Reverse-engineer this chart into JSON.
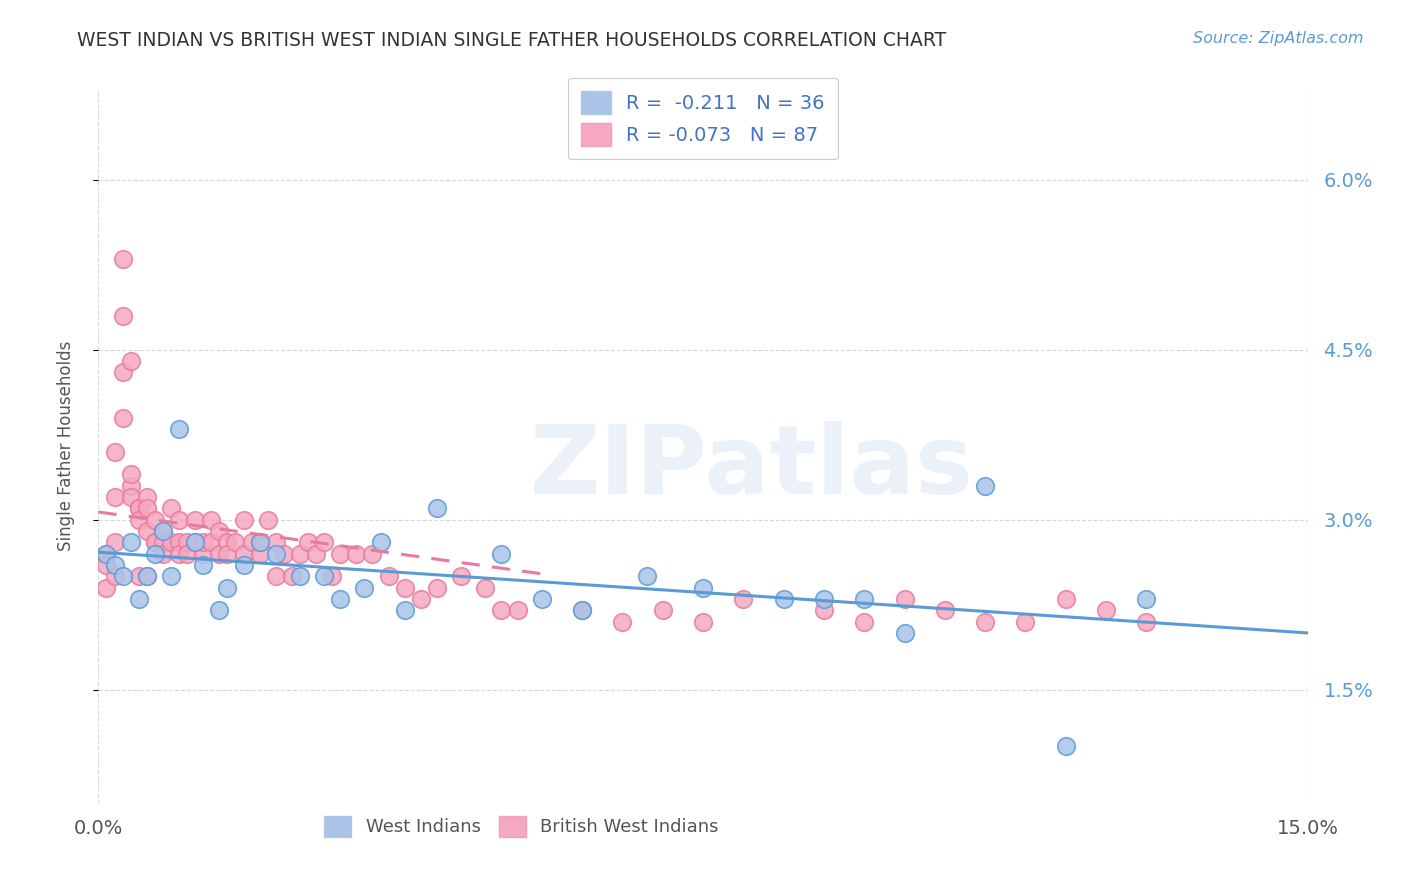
{
  "title": "WEST INDIAN VS BRITISH WEST INDIAN SINGLE FATHER HOUSEHOLDS CORRELATION CHART",
  "source": "Source: ZipAtlas.com",
  "ylabel": "Single Father Households",
  "ytick_labels": [
    "1.5%",
    "3.0%",
    "4.5%",
    "6.0%"
  ],
  "ytick_values": [
    0.015,
    0.03,
    0.045,
    0.06
  ],
  "xlim": [
    0.0,
    0.15
  ],
  "ylim": [
    0.005,
    0.068
  ],
  "west_indian_color": "#aac4e8",
  "british_west_indian_color": "#f5a8c0",
  "west_indian_line_color": "#5b9bd5",
  "british_west_indian_line_color": "#e87aa0",
  "legend_text_color": "#4472c4",
  "background_color": "#ffffff",
  "grid_color": "#d8d8d8",
  "watermark": "ZIPatlas",
  "legend": {
    "west_indians_R": "-0.211",
    "west_indians_N": "36",
    "british_west_indians_R": "-0.073",
    "british_west_indians_N": "87"
  },
  "west_indians_x": [
    0.001,
    0.002,
    0.003,
    0.004,
    0.005,
    0.006,
    0.007,
    0.008,
    0.009,
    0.01,
    0.012,
    0.013,
    0.015,
    0.016,
    0.018,
    0.02,
    0.022,
    0.025,
    0.028,
    0.03,
    0.033,
    0.035,
    0.038,
    0.042,
    0.05,
    0.055,
    0.06,
    0.068,
    0.075,
    0.085,
    0.09,
    0.095,
    0.1,
    0.11,
    0.12,
    0.13
  ],
  "west_indians_y": [
    0.027,
    0.026,
    0.025,
    0.028,
    0.023,
    0.025,
    0.027,
    0.029,
    0.025,
    0.038,
    0.028,
    0.026,
    0.022,
    0.024,
    0.026,
    0.028,
    0.027,
    0.025,
    0.025,
    0.023,
    0.024,
    0.028,
    0.022,
    0.031,
    0.027,
    0.023,
    0.022,
    0.025,
    0.024,
    0.023,
    0.023,
    0.023,
    0.02,
    0.033,
    0.01,
    0.023
  ],
  "british_west_indians_x": [
    0.001,
    0.001,
    0.001,
    0.002,
    0.002,
    0.002,
    0.003,
    0.003,
    0.003,
    0.004,
    0.004,
    0.004,
    0.005,
    0.005,
    0.005,
    0.006,
    0.006,
    0.006,
    0.007,
    0.007,
    0.007,
    0.008,
    0.008,
    0.008,
    0.009,
    0.009,
    0.01,
    0.01,
    0.01,
    0.011,
    0.011,
    0.012,
    0.012,
    0.013,
    0.013,
    0.014,
    0.014,
    0.015,
    0.015,
    0.016,
    0.016,
    0.017,
    0.018,
    0.018,
    0.019,
    0.02,
    0.02,
    0.021,
    0.022,
    0.022,
    0.023,
    0.024,
    0.025,
    0.026,
    0.027,
    0.028,
    0.029,
    0.03,
    0.032,
    0.034,
    0.036,
    0.038,
    0.04,
    0.042,
    0.045,
    0.048,
    0.05,
    0.052,
    0.06,
    0.065,
    0.07,
    0.075,
    0.08,
    0.09,
    0.095,
    0.1,
    0.105,
    0.11,
    0.115,
    0.12,
    0.125,
    0.13,
    0.002,
    0.003,
    0.004,
    0.005,
    0.006
  ],
  "british_west_indians_y": [
    0.027,
    0.026,
    0.024,
    0.028,
    0.025,
    0.032,
    0.053,
    0.048,
    0.043,
    0.044,
    0.033,
    0.032,
    0.031,
    0.031,
    0.03,
    0.032,
    0.031,
    0.029,
    0.03,
    0.028,
    0.028,
    0.029,
    0.028,
    0.027,
    0.028,
    0.031,
    0.028,
    0.027,
    0.03,
    0.028,
    0.027,
    0.03,
    0.028,
    0.027,
    0.028,
    0.03,
    0.028,
    0.029,
    0.027,
    0.028,
    0.027,
    0.028,
    0.027,
    0.03,
    0.028,
    0.027,
    0.028,
    0.03,
    0.028,
    0.025,
    0.027,
    0.025,
    0.027,
    0.028,
    0.027,
    0.028,
    0.025,
    0.027,
    0.027,
    0.027,
    0.025,
    0.024,
    0.023,
    0.024,
    0.025,
    0.024,
    0.022,
    0.022,
    0.022,
    0.021,
    0.022,
    0.021,
    0.023,
    0.022,
    0.021,
    0.023,
    0.022,
    0.021,
    0.021,
    0.023,
    0.022,
    0.021,
    0.036,
    0.039,
    0.034,
    0.025,
    0.025
  ]
}
